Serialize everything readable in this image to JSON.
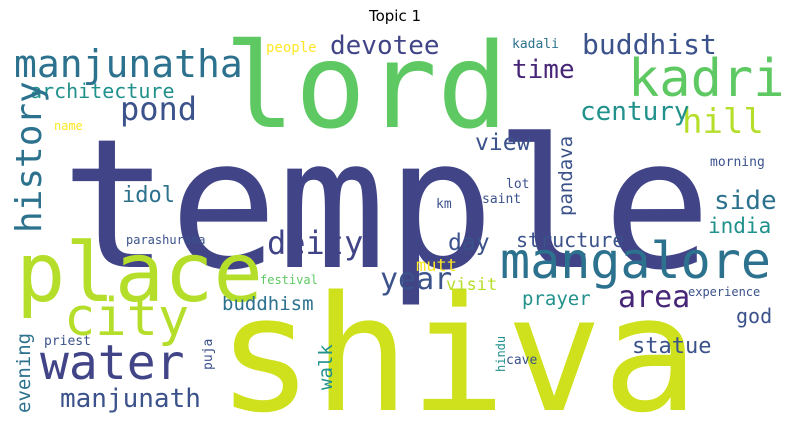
{
  "title": "Topic 1",
  "palette": {
    "dark_purple": "#482677",
    "indigo": "#414487",
    "slate_blue": "#3b528b",
    "steel_blue": "#2c728e",
    "teal": "#21918c",
    "green": "#5ec962",
    "lime": "#b5de2b",
    "yellow_green": "#cfe11c",
    "yellow": "#fde725"
  },
  "words": {
    "temple": "temple",
    "shiva": "shiva",
    "lord": "lord",
    "place": "place",
    "mangalore": "mangalore",
    "kadri": "kadri",
    "manjunatha": "manjunatha",
    "city": "city",
    "water": "water",
    "history": "history",
    "pond": "pond",
    "deity": "deity",
    "devotee": "devotee",
    "buddhist": "buddhist",
    "hill": "hill",
    "century": "century",
    "time": "time",
    "architecture": "architecture",
    "year": "year",
    "area": "area",
    "manjunath": "manjunath",
    "side": "side",
    "india": "india",
    "view": "view",
    "idol": "idol",
    "day": "day",
    "structure": "structure",
    "pandava": "pandava",
    "buddhism": "buddhism",
    "prayer": "prayer",
    "statue": "statue",
    "evening": "evening",
    "walk": "walk",
    "god": "god",
    "visit": "visit",
    "mutt": "mutt",
    "people": "people",
    "kadali": "kadali",
    "name": "name",
    "morning": "morning",
    "lot": "lot",
    "saint": "saint",
    "km": "km",
    "parashurama": "parashurama",
    "festival": "festival",
    "experience": "experience",
    "priest": "priest",
    "puja": "puja",
    "hindu": "hindu",
    "cave": "cave"
  }
}
